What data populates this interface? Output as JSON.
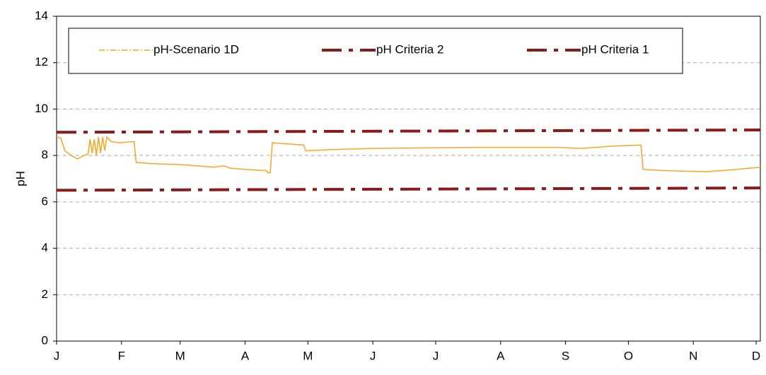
{
  "chart_data": {
    "type": "line",
    "y_label": "pH",
    "xlim": [
      0,
      336
    ],
    "xticks": [
      {
        "value": 0,
        "label": "J"
      },
      {
        "value": 31,
        "label": "F"
      },
      {
        "value": 59,
        "label": "M"
      },
      {
        "value": 90,
        "label": "A"
      },
      {
        "value": 120,
        "label": "M"
      },
      {
        "value": 151,
        "label": "J"
      },
      {
        "value": 181,
        "label": "J"
      },
      {
        "value": 212,
        "label": "A"
      },
      {
        "value": 243,
        "label": "S"
      },
      {
        "value": 273,
        "label": "O"
      },
      {
        "value": 304,
        "label": "N"
      },
      {
        "value": 334,
        "label": "D"
      }
    ],
    "ylim": [
      0,
      14
    ],
    "yticks": [
      0,
      2,
      4,
      6,
      8,
      10,
      12,
      14
    ],
    "grid": true,
    "series": [
      {
        "name": "pH-Scenario 1D",
        "color": "#f5a623",
        "style": "solid",
        "x": [
          0,
          2,
          4,
          7,
          10,
          13,
          15,
          16,
          17,
          18,
          19,
          20,
          21,
          22,
          23,
          24,
          26,
          30,
          37,
          38,
          45,
          60,
          75,
          80,
          83,
          90,
          100,
          101,
          102,
          103,
          110,
          118,
          119,
          130,
          150,
          200,
          240,
          250,
          265,
          279,
          280,
          290,
          310,
          325,
          336
        ],
        "values": [
          8.8,
          8.75,
          8.2,
          8.0,
          7.85,
          8.0,
          8.05,
          8.7,
          8.1,
          8.7,
          8.0,
          8.8,
          8.1,
          8.8,
          8.2,
          8.8,
          8.6,
          8.55,
          8.6,
          7.7,
          7.65,
          7.6,
          7.5,
          7.55,
          7.45,
          7.4,
          7.35,
          7.25,
          7.25,
          8.55,
          8.5,
          8.45,
          8.2,
          8.25,
          8.3,
          8.35,
          8.35,
          8.3,
          8.4,
          8.45,
          7.4,
          7.35,
          7.3,
          7.4,
          7.5
        ]
      },
      {
        "name": "pH Criteria 2",
        "color": "#8b1a1a",
        "style": "dashdot",
        "x": [
          0,
          336
        ],
        "values": [
          9.0,
          9.1
        ]
      },
      {
        "name": "pH Criteria 1",
        "color": "#8b1a1a",
        "style": "dashdot",
        "x": [
          0,
          336
        ],
        "values": [
          6.5,
          6.6
        ]
      }
    ]
  }
}
